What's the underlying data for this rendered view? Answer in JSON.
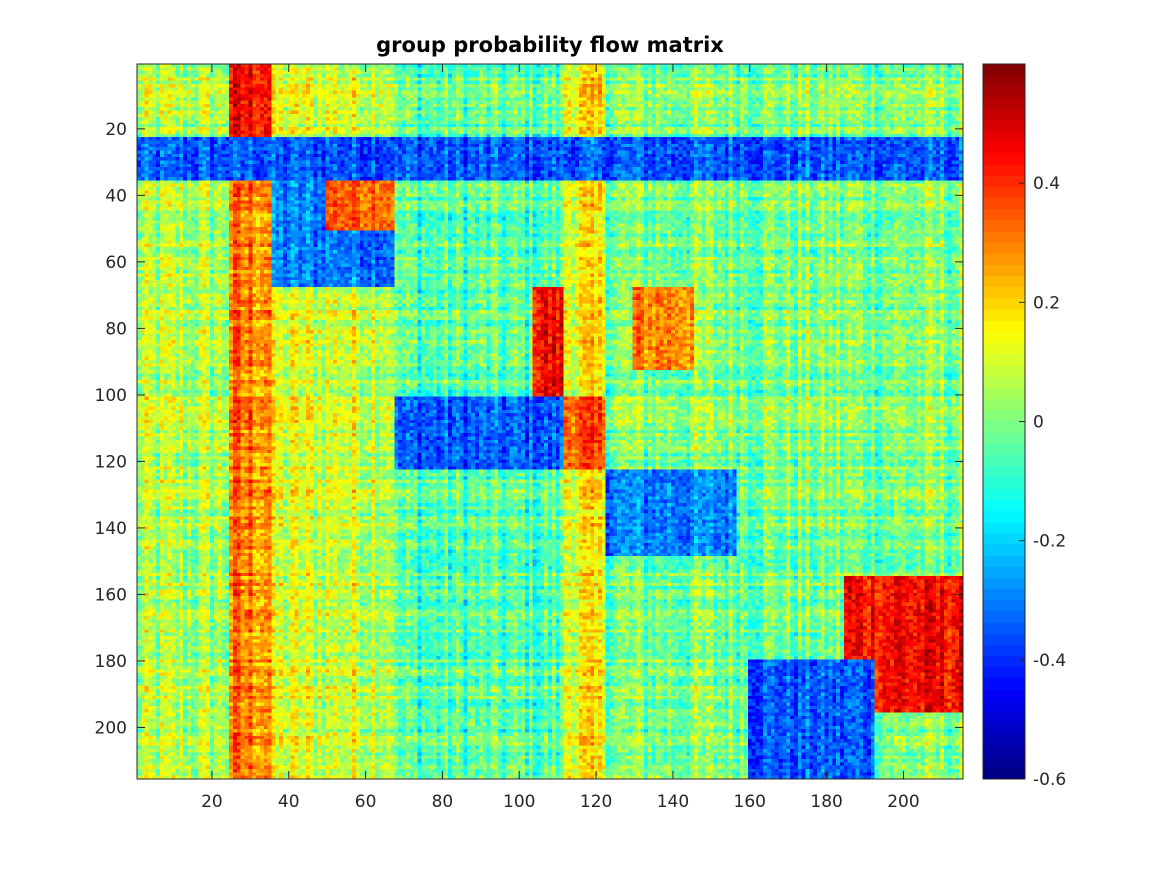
{
  "chart_data": {
    "type": "heatmap",
    "title": "group probability flow matrix",
    "xlabel": "",
    "ylabel": "",
    "n_rows": 215,
    "n_cols": 215,
    "xlim": [
      0.5,
      215.5
    ],
    "ylim": [
      0.5,
      215.5
    ],
    "y_direction": "reverse",
    "x_ticks": [
      20,
      40,
      60,
      80,
      100,
      120,
      140,
      160,
      180,
      200
    ],
    "x_tick_labels": [
      "20",
      "40",
      "60",
      "80",
      "100",
      "120",
      "140",
      "160",
      "180",
      "200"
    ],
    "y_ticks": [
      20,
      40,
      60,
      80,
      100,
      120,
      140,
      160,
      180,
      200
    ],
    "y_tick_labels": [
      "20",
      "40",
      "60",
      "80",
      "100",
      "120",
      "140",
      "160",
      "180",
      "200"
    ],
    "colormap": "jet",
    "color_range": [
      -0.6,
      0.6
    ],
    "colorbar": {
      "ticks": [
        0.4,
        0.2,
        0,
        -0.2,
        -0.4,
        -0.6
      ],
      "tick_labels": [
        "0.4",
        "0.2",
        "0",
        "-0.2",
        "-0.4",
        "-0.6"
      ],
      "placement": "right"
    },
    "grid": false,
    "group_boundaries": [
      24,
      35,
      67,
      111,
      122,
      156
    ],
    "column_means": [
      {
        "cols": [
          1,
          24
        ],
        "value": 0.05
      },
      {
        "cols": [
          25,
          35
        ],
        "value": 0.3
      },
      {
        "cols": [
          36,
          67
        ],
        "value": 0.1
      },
      {
        "cols": [
          68,
          111
        ],
        "value": -0.05
      },
      {
        "cols": [
          112,
          122
        ],
        "value": 0.15
      },
      {
        "cols": [
          123,
          156
        ],
        "value": 0.0
      },
      {
        "cols": [
          157,
          215
        ],
        "value": 0.0
      }
    ],
    "block_values": [
      {
        "rows": [
          1,
          22
        ],
        "cols": [
          25,
          35
        ],
        "value": 0.45
      },
      {
        "rows": [
          23,
          35
        ],
        "cols": [
          1,
          215
        ],
        "value": -0.35
      },
      {
        "rows": [
          36,
          67
        ],
        "cols": [
          36,
          67
        ],
        "value": -0.3
      },
      {
        "rows": [
          36,
          50
        ],
        "cols": [
          50,
          67
        ],
        "value": 0.35
      },
      {
        "rows": [
          68,
          100
        ],
        "cols": [
          104,
          111
        ],
        "value": 0.45
      },
      {
        "rows": [
          101,
          122
        ],
        "cols": [
          68,
          111
        ],
        "value": -0.35
      },
      {
        "rows": [
          101,
          122
        ],
        "cols": [
          112,
          122
        ],
        "value": 0.35
      },
      {
        "rows": [
          123,
          148
        ],
        "cols": [
          123,
          156
        ],
        "value": -0.3
      },
      {
        "rows": [
          68,
          92
        ],
        "cols": [
          130,
          145
        ],
        "value": 0.3
      },
      {
        "rows": [
          155,
          195
        ],
        "cols": [
          185,
          215
        ],
        "value": 0.45
      },
      {
        "rows": [
          180,
          215
        ],
        "cols": [
          160,
          192
        ],
        "value": -0.35
      }
    ]
  }
}
